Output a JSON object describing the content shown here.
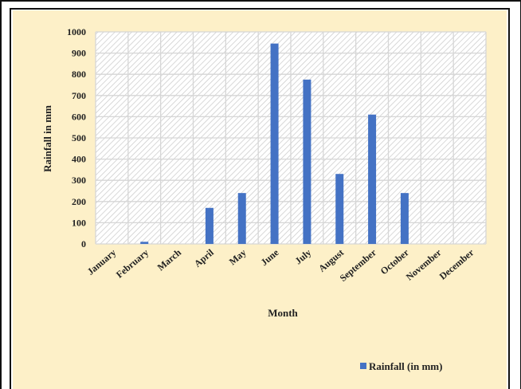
{
  "chart_data": {
    "type": "bar",
    "title": "",
    "xlabel": "Month",
    "ylabel": "Rainfall in mm",
    "ylim": [
      0,
      1000
    ],
    "yticks": [
      0,
      100,
      200,
      300,
      400,
      500,
      600,
      700,
      800,
      900,
      1000
    ],
    "grid": true,
    "legend_position": "bottom-right",
    "categories": [
      "January",
      "February",
      "March",
      "April",
      "May",
      "June",
      "July",
      "August",
      "September",
      "October",
      "November",
      "December"
    ],
    "series": [
      {
        "name": "Rainfall (in mm)",
        "color": "#4472c4",
        "values": [
          0,
          10,
          0,
          170,
          240,
          945,
          775,
          330,
          610,
          240,
          0,
          0
        ]
      }
    ]
  }
}
